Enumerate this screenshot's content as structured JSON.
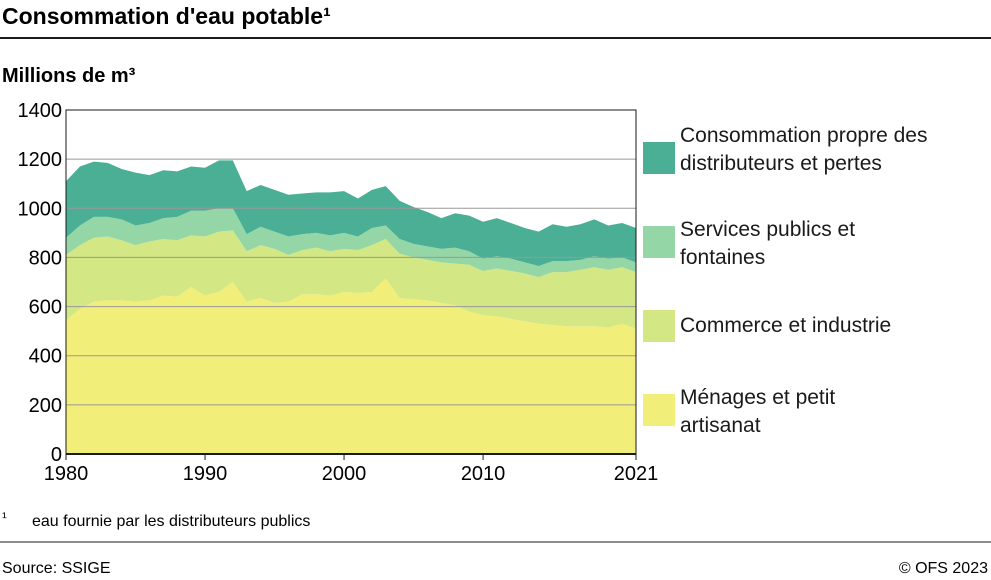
{
  "chart_data": {
    "type": "stacked-area",
    "title": "Consommation d'eau potable¹",
    "y_label": "Millions de m³",
    "footnote_mark": "¹",
    "footnote": "eau fournie par les distributeurs publics",
    "source": "Source: SSIGE",
    "copyright": "© OFS 2023",
    "x": [
      1980,
      1981,
      1982,
      1983,
      1984,
      1985,
      1986,
      1987,
      1988,
      1989,
      1990,
      1991,
      1992,
      1993,
      1994,
      1995,
      1996,
      1997,
      1998,
      1999,
      2000,
      2001,
      2002,
      2003,
      2004,
      2005,
      2006,
      2007,
      2008,
      2009,
      2010,
      2011,
      2012,
      2013,
      2014,
      2015,
      2016,
      2017,
      2018,
      2019,
      2020,
      2021
    ],
    "series": [
      {
        "name": "Ménages et petit artisanat",
        "color": "#f2ee7a",
        "values": [
          545,
          590,
          620,
          625,
          625,
          620,
          625,
          645,
          640,
          680,
          645,
          660,
          700,
          620,
          635,
          615,
          620,
          650,
          650,
          645,
          660,
          655,
          660,
          715,
          635,
          630,
          625,
          615,
          605,
          580,
          565,
          560,
          550,
          540,
          530,
          525,
          520,
          520,
          520,
          515,
          530,
          510
        ]
      },
      {
        "name": "Commerce et industrie",
        "color": "#d3e784",
        "values": [
          265,
          260,
          260,
          260,
          245,
          230,
          240,
          230,
          230,
          210,
          240,
          245,
          210,
          205,
          215,
          220,
          190,
          180,
          190,
          180,
          175,
          175,
          190,
          160,
          180,
          170,
          165,
          165,
          170,
          190,
          180,
          195,
          195,
          195,
          190,
          215,
          220,
          230,
          240,
          235,
          230,
          230
        ]
      },
      {
        "name": "Services publics et fontaines",
        "color": "#95d6a6",
        "values": [
          70,
          80,
          85,
          80,
          85,
          80,
          75,
          85,
          95,
          100,
          105,
          95,
          90,
          70,
          75,
          70,
          75,
          65,
          60,
          65,
          65,
          55,
          70,
          55,
          60,
          55,
          55,
          55,
          65,
          55,
          50,
          50,
          50,
          45,
          45,
          45,
          45,
          40,
          45,
          45,
          40,
          40
        ]
      },
      {
        "name": "Consommation propre des distributeurs et pertes",
        "color": "#4aaf95",
        "values": [
          230,
          240,
          225,
          220,
          205,
          215,
          195,
          195,
          185,
          180,
          175,
          195,
          195,
          175,
          170,
          170,
          170,
          165,
          165,
          175,
          170,
          155,
          155,
          160,
          155,
          150,
          140,
          125,
          140,
          145,
          150,
          155,
          145,
          140,
          140,
          150,
          140,
          145,
          150,
          135,
          140,
          140
        ]
      }
    ],
    "xlim": [
      1980,
      2021
    ],
    "xticks": [
      1980,
      1990,
      2000,
      2010,
      2021
    ],
    "ylim": [
      0,
      1400
    ],
    "yticks": [
      0,
      200,
      400,
      600,
      800,
      1000,
      1200,
      1400
    ],
    "grid": true
  }
}
